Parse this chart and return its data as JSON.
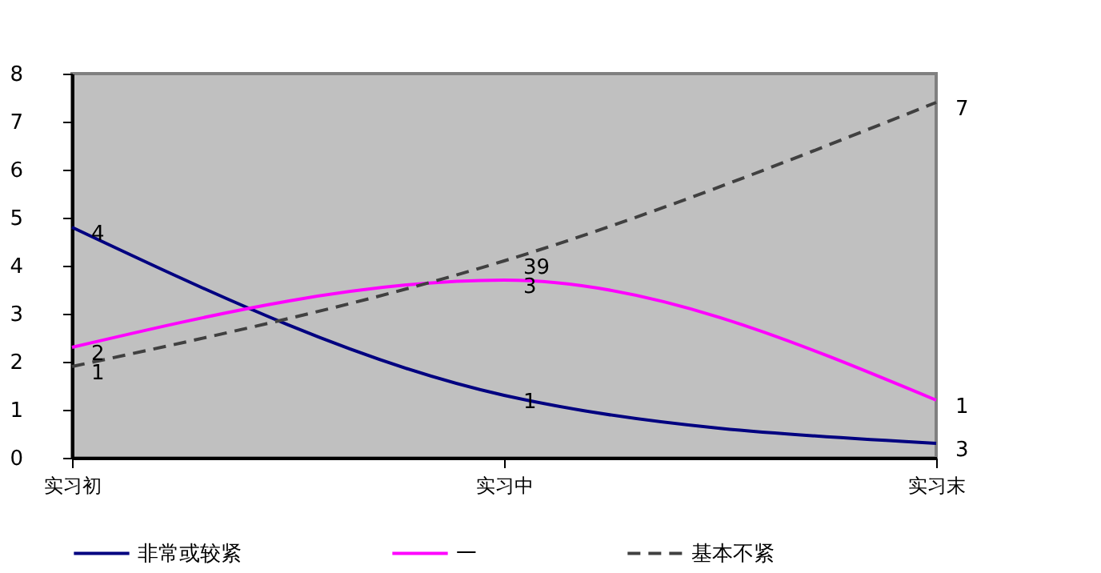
{
  "chart_data": {
    "type": "line",
    "categories": [
      "实习初",
      "实习中",
      "实习末"
    ],
    "series": [
      {
        "name": "非常或较紧",
        "color": "#000080",
        "line_style": "solid",
        "values": [
          4.8,
          1.3,
          0.3
        ]
      },
      {
        "name": "一",
        "color": "#ff00ff",
        "line_style": "solid",
        "values": [
          2.3,
          3.7,
          1.2
        ]
      },
      {
        "name": "基本不紧",
        "color": "#404040",
        "line_style": "dashed",
        "values": [
          1.9,
          4.1,
          7.4
        ]
      }
    ],
    "annotations": [
      {
        "text": "4",
        "x": "实习初",
        "y": 4.8
      },
      {
        "text": "1",
        "x": "实习中",
        "y": 1.3
      },
      {
        "text": "3",
        "x": "实习末",
        "y": 0.3
      },
      {
        "text": "2",
        "x": "实习初",
        "y": 2.3
      },
      {
        "text": "3",
        "x": "实习中",
        "y": 3.7
      },
      {
        "text": "1",
        "x": "实习末",
        "y": 1.2
      },
      {
        "text": "1",
        "x": "实习初",
        "y": 1.9
      },
      {
        "text": "39",
        "x": "实习中",
        "y": 4.1
      },
      {
        "text": "7",
        "x": "实习末",
        "y": 7.4
      }
    ],
    "ylim": [
      0,
      8
    ],
    "yticks": [
      0,
      1,
      2,
      3,
      4,
      5,
      6,
      7,
      8
    ],
    "grid": false,
    "legend": "bottom",
    "marker": "none"
  }
}
